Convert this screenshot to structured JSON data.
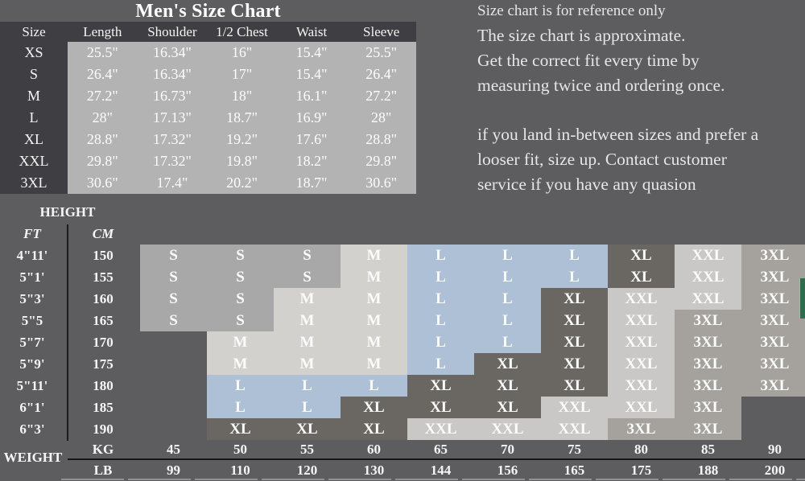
{
  "title": "Men's Size Chart",
  "size_table": {
    "columns": [
      "Size",
      "Length",
      "Shoulder",
      "1/2 Chest",
      "Waist",
      "Sleeve"
    ],
    "rows": [
      [
        "XS",
        "25.5\"",
        "16.34\"",
        "16\"",
        "15.4\"",
        "25.5\""
      ],
      [
        "S",
        "26.4\"",
        "16.34\"",
        "17\"",
        "15.4\"",
        "26.4\""
      ],
      [
        "M",
        "27.2\"",
        "16.73\"",
        "18\"",
        "16.1\"",
        "27.2\""
      ],
      [
        "L",
        "28\"",
        "17.13\"",
        "18.7\"",
        "16.9\"",
        "28\""
      ],
      [
        "XL",
        "28.8\"",
        "17.32\"",
        "19.2\"",
        "17.6\"",
        "28.8\""
      ],
      [
        "XXL",
        "29.8\"",
        "17.32\"",
        "19.8\"",
        "18.2\"",
        "29.8\""
      ],
      [
        "3XL",
        "30.6\"",
        "17.4\"",
        "20.2\"",
        "18.7\"",
        "30.6\""
      ]
    ]
  },
  "notes": {
    "intro": "Size chart is for reference only",
    "paragraph1": [
      "The size chart is approximate.",
      "Get the correct fit every time by",
      "measuring twice and ordering once."
    ],
    "paragraph2": [
      "if you land in-between sizes and prefer a",
      "looser fit, size up. Contact customer",
      "service if you have any quasion"
    ]
  },
  "height_weight_chart": {
    "height_label": "HEIGHT",
    "weight_label": "WEIGHT",
    "ft_label": "FT",
    "cm_label": "CM",
    "kg_label": "KG",
    "lb_label": "LB",
    "rows": [
      {
        "ft": "4\"11'",
        "cm": "150",
        "sizes": [
          "S",
          "S",
          "S",
          "M",
          "L",
          "L",
          "L",
          "XL",
          "XXL",
          "3XL"
        ]
      },
      {
        "ft": "5\"1'",
        "cm": "155",
        "sizes": [
          "S",
          "S",
          "S",
          "M",
          "L",
          "L",
          "L",
          "XL",
          "XXL",
          "3XL"
        ]
      },
      {
        "ft": "5\"3'",
        "cm": "160",
        "sizes": [
          "S",
          "S",
          "M",
          "M",
          "L",
          "L",
          "XL",
          "XXL",
          "XXL",
          "3XL"
        ]
      },
      {
        "ft": "5\"5",
        "cm": "165",
        "sizes": [
          "S",
          "S",
          "M",
          "M",
          "L",
          "L",
          "XL",
          "XXL",
          "3XL",
          "3XL"
        ]
      },
      {
        "ft": "5\"7'",
        "cm": "170",
        "sizes": [
          "",
          "M",
          "M",
          "M",
          "L",
          "L",
          "XL",
          "XXL",
          "3XL",
          "3XL"
        ]
      },
      {
        "ft": "5\"9'",
        "cm": "175",
        "sizes": [
          "",
          "M",
          "M",
          "M",
          "L",
          "XL",
          "XL",
          "XXL",
          "3XL",
          "3XL"
        ]
      },
      {
        "ft": "5\"11'",
        "cm": "180",
        "sizes": [
          "",
          "L",
          "L",
          "L",
          "XL",
          "XL",
          "XL",
          "XXL",
          "3XL",
          "3XL"
        ]
      },
      {
        "ft": "6\"1'",
        "cm": "185",
        "sizes": [
          "",
          "L",
          "L",
          "XL",
          "XL",
          "XL",
          "XXL",
          "XXL",
          "3XL",
          ""
        ]
      },
      {
        "ft": "6\"3'",
        "cm": "190",
        "sizes": [
          "",
          "XL",
          "XL",
          "XL",
          "XXL",
          "XXL",
          "XXL",
          "3XL",
          "3XL",
          ""
        ]
      }
    ],
    "weights_kg": [
      "45",
      "50",
      "55",
      "60",
      "65",
      "70",
      "75",
      "80",
      "85",
      "90"
    ],
    "weights_lb": [
      "99",
      "110",
      "120",
      "130",
      "144",
      "156",
      "165",
      "175",
      "188",
      "200"
    ],
    "size_colors": {
      "S": "#a8a8a8",
      "M": "#d3d1ce",
      "L": "#aec0d5",
      "XL": "#6a6662",
      "XXL": "#c9c8c6",
      "3XL": "#a5a29e"
    }
  },
  "colors": {
    "page_background": "#5d5d5f",
    "table_dark_block": "#3f3f43",
    "table_light_panel": "#b3b3b3",
    "green_edge_tab": "#2f6b4d"
  }
}
